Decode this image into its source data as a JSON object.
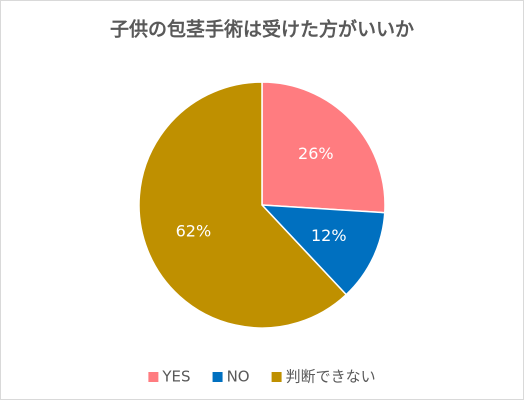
{
  "chart_data": {
    "type": "pie",
    "title": "子供の包茎手術は受けた方がいいか",
    "categories": [
      "YES",
      "NO",
      "判断できない"
    ],
    "values": [
      26,
      12,
      62
    ],
    "value_labels": [
      "26%",
      "12%",
      "62%"
    ],
    "colors": [
      "#ff7c80",
      "#0070c0",
      "#bf9000"
    ],
    "legend": "bottom"
  }
}
